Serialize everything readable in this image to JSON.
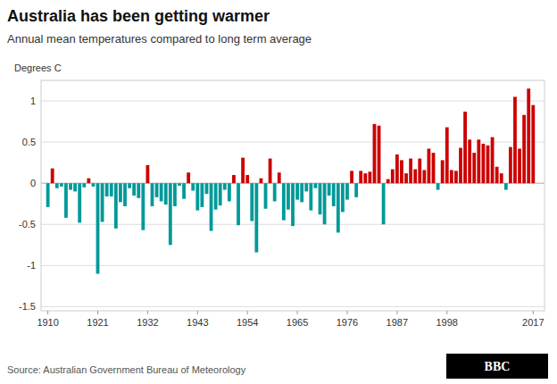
{
  "chart_data": {
    "type": "bar",
    "title": "Australia has been getting warmer",
    "subtitle": "Annual mean temperatures compared to long term average",
    "y_label": "Degrees C",
    "annotations": [
      "Source: Australian Government Bureau of Meteorology",
      "BBC"
    ],
    "x": [
      1910,
      1911,
      1912,
      1913,
      1914,
      1915,
      1916,
      1917,
      1918,
      1919,
      1920,
      1921,
      1922,
      1923,
      1924,
      1925,
      1926,
      1927,
      1928,
      1929,
      1930,
      1931,
      1932,
      1933,
      1934,
      1935,
      1936,
      1937,
      1938,
      1939,
      1940,
      1941,
      1942,
      1943,
      1944,
      1945,
      1946,
      1947,
      1948,
      1949,
      1950,
      1951,
      1952,
      1953,
      1954,
      1955,
      1956,
      1957,
      1958,
      1959,
      1960,
      1961,
      1962,
      1963,
      1964,
      1965,
      1966,
      1967,
      1968,
      1969,
      1970,
      1971,
      1972,
      1973,
      1974,
      1975,
      1976,
      1977,
      1978,
      1979,
      1980,
      1981,
      1982,
      1983,
      1984,
      1985,
      1986,
      1987,
      1988,
      1989,
      1990,
      1991,
      1992,
      1993,
      1994,
      1995,
      1996,
      1997,
      1998,
      1999,
      2000,
      2001,
      2002,
      2003,
      2004,
      2005,
      2006,
      2007,
      2008,
      2009,
      2010,
      2011,
      2012,
      2013,
      2014,
      2015,
      2016,
      2017
    ],
    "values": [
      -0.29,
      0.18,
      -0.06,
      -0.04,
      -0.42,
      -0.08,
      -0.1,
      -0.48,
      -0.05,
      0.06,
      -0.04,
      -1.1,
      -0.47,
      -0.16,
      -0.16,
      -0.55,
      -0.23,
      -0.28,
      -0.06,
      -0.15,
      -0.18,
      -0.57,
      0.22,
      -0.28,
      -0.17,
      -0.22,
      -0.26,
      -0.75,
      -0.28,
      -0.03,
      -0.19,
      0.13,
      -0.09,
      -0.33,
      -0.29,
      -0.13,
      -0.58,
      -0.32,
      -0.27,
      -0.08,
      -0.22,
      0.1,
      -0.51,
      0.31,
      0.1,
      -0.46,
      -0.84,
      0.06,
      -0.31,
      0.3,
      -0.22,
      0.13,
      -0.45,
      -0.32,
      -0.52,
      -0.2,
      -0.23,
      -0.1,
      -0.33,
      -0.06,
      -0.38,
      -0.5,
      -0.15,
      -0.28,
      -0.6,
      -0.35,
      -0.2,
      0.15,
      -0.17,
      0.15,
      0.12,
      0.14,
      0.72,
      0.7,
      -0.5,
      0.05,
      0.17,
      0.35,
      0.28,
      0.12,
      0.3,
      0.17,
      0.3,
      0.16,
      0.42,
      0.37,
      -0.08,
      0.28,
      0.68,
      0.16,
      0.15,
      0.43,
      0.87,
      0.53,
      0.37,
      0.53,
      0.48,
      0.46,
      0.56,
      0.2,
      0.12,
      -0.08,
      0.44,
      1.05,
      0.42,
      0.83,
      1.15,
      0.95
    ],
    "colors": [
      "#009999",
      "#cc0000",
      "#009999",
      "#009999",
      "#009999",
      "#009999",
      "#009999",
      "#009999",
      "#009999",
      "#cc0000",
      "#009999",
      "#009999",
      "#009999",
      "#009999",
      "#009999",
      "#009999",
      "#009999",
      "#009999",
      "#009999",
      "#009999",
      "#009999",
      "#009999",
      "#cc0000",
      "#009999",
      "#009999",
      "#009999",
      "#009999",
      "#009999",
      "#009999",
      "#009999",
      "#009999",
      "#cc0000",
      "#009999",
      "#009999",
      "#009999",
      "#009999",
      "#009999",
      "#009999",
      "#009999",
      "#009999",
      "#009999",
      "#cc0000",
      "#009999",
      "#cc0000",
      "#cc0000",
      "#009999",
      "#009999",
      "#cc0000",
      "#009999",
      "#cc0000",
      "#009999",
      "#cc0000",
      "#009999",
      "#009999",
      "#009999",
      "#009999",
      "#009999",
      "#009999",
      "#009999",
      "#009999",
      "#009999",
      "#009999",
      "#009999",
      "#009999",
      "#009999",
      "#009999",
      "#009999",
      "#cc0000",
      "#009999",
      "#cc0000",
      "#cc0000",
      "#cc0000",
      "#cc0000",
      "#cc0000",
      "#009999",
      "#cc0000",
      "#cc0000",
      "#cc0000",
      "#cc0000",
      "#cc0000",
      "#cc0000",
      "#cc0000",
      "#cc0000",
      "#cc0000",
      "#cc0000",
      "#cc0000",
      "#009999",
      "#cc0000",
      "#cc0000",
      "#cc0000",
      "#cc0000",
      "#cc0000",
      "#cc0000",
      "#cc0000",
      "#cc0000",
      "#cc0000",
      "#cc0000",
      "#cc0000",
      "#cc0000",
      "#cc0000",
      "#cc0000",
      "#009999",
      "#cc0000",
      "#cc0000",
      "#cc0000",
      "#cc0000",
      "#cc0000",
      "#cc0000"
    ],
    "xlim": [
      1908.5,
      2019.5
    ],
    "xticks": [
      1910,
      1921,
      1932,
      1943,
      1954,
      1965,
      1976,
      1987,
      1998,
      2017
    ],
    "ylim": [
      -1.55,
      1.25
    ],
    "yticks": [
      -1.5,
      -1,
      -0.5,
      0,
      0.5,
      1
    ],
    "grid": true
  }
}
